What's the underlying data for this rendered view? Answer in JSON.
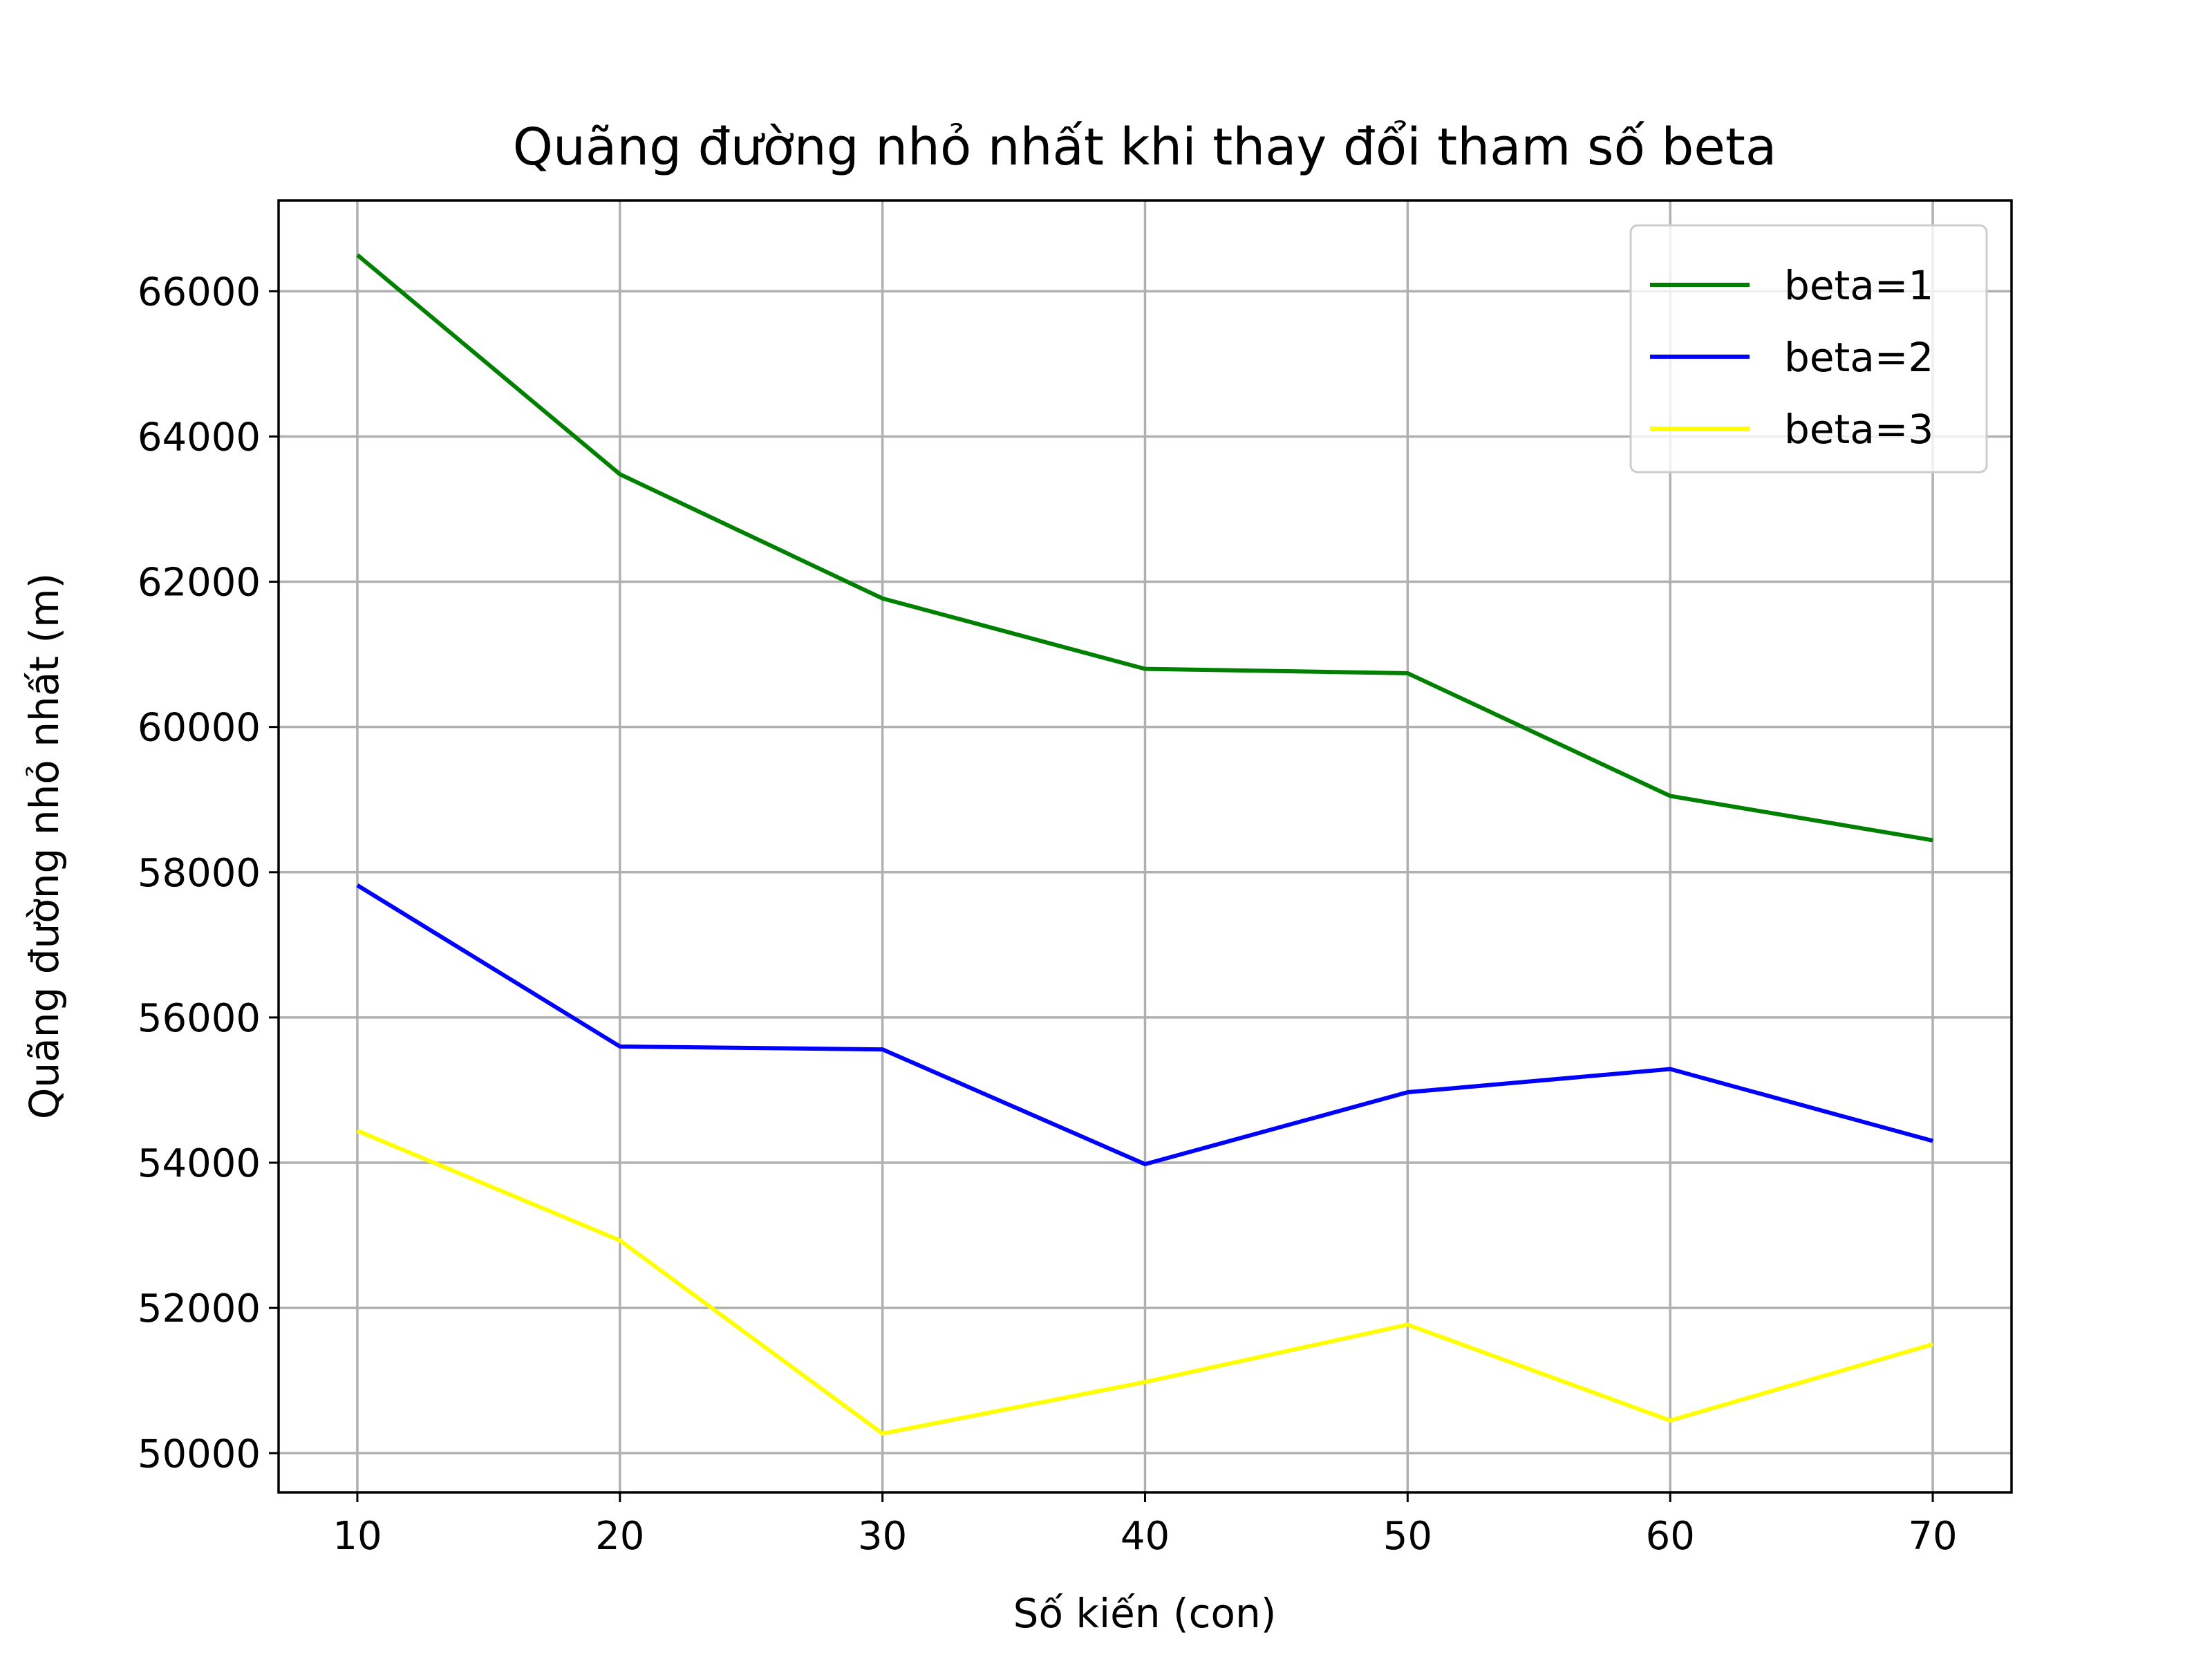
{
  "chart_data": {
    "type": "line",
    "title": "Quãng đường nhỏ nhất khi thay đổi tham số beta",
    "xlabel": "Số kiến (con)",
    "ylabel": "Quãng đường nhỏ nhất (m)",
    "x": [
      10,
      20,
      30,
      40,
      50,
      60,
      70
    ],
    "xticks": [
      "10",
      "20",
      "30",
      "40",
      "50",
      "60",
      "70"
    ],
    "yticks": [
      "50000",
      "52000",
      "54000",
      "56000",
      "58000",
      "60000",
      "62000",
      "64000",
      "66000"
    ],
    "xlim": [
      7,
      73
    ],
    "ylim": [
      49460,
      67250
    ],
    "grid": true,
    "legend_position": "top-right",
    "series": [
      {
        "name": "beta=1",
        "color": "#008000",
        "values": [
          66500,
          63480,
          61770,
          60800,
          60740,
          59050,
          58440
        ]
      },
      {
        "name": "beta=2",
        "color": "#0000ff",
        "values": [
          57820,
          55600,
          55560,
          53980,
          54970,
          55290,
          54300
        ]
      },
      {
        "name": "beta=3",
        "color": "#ffff00",
        "values": [
          54440,
          52930,
          50270,
          50980,
          51770,
          50450,
          51500
        ]
      }
    ]
  }
}
